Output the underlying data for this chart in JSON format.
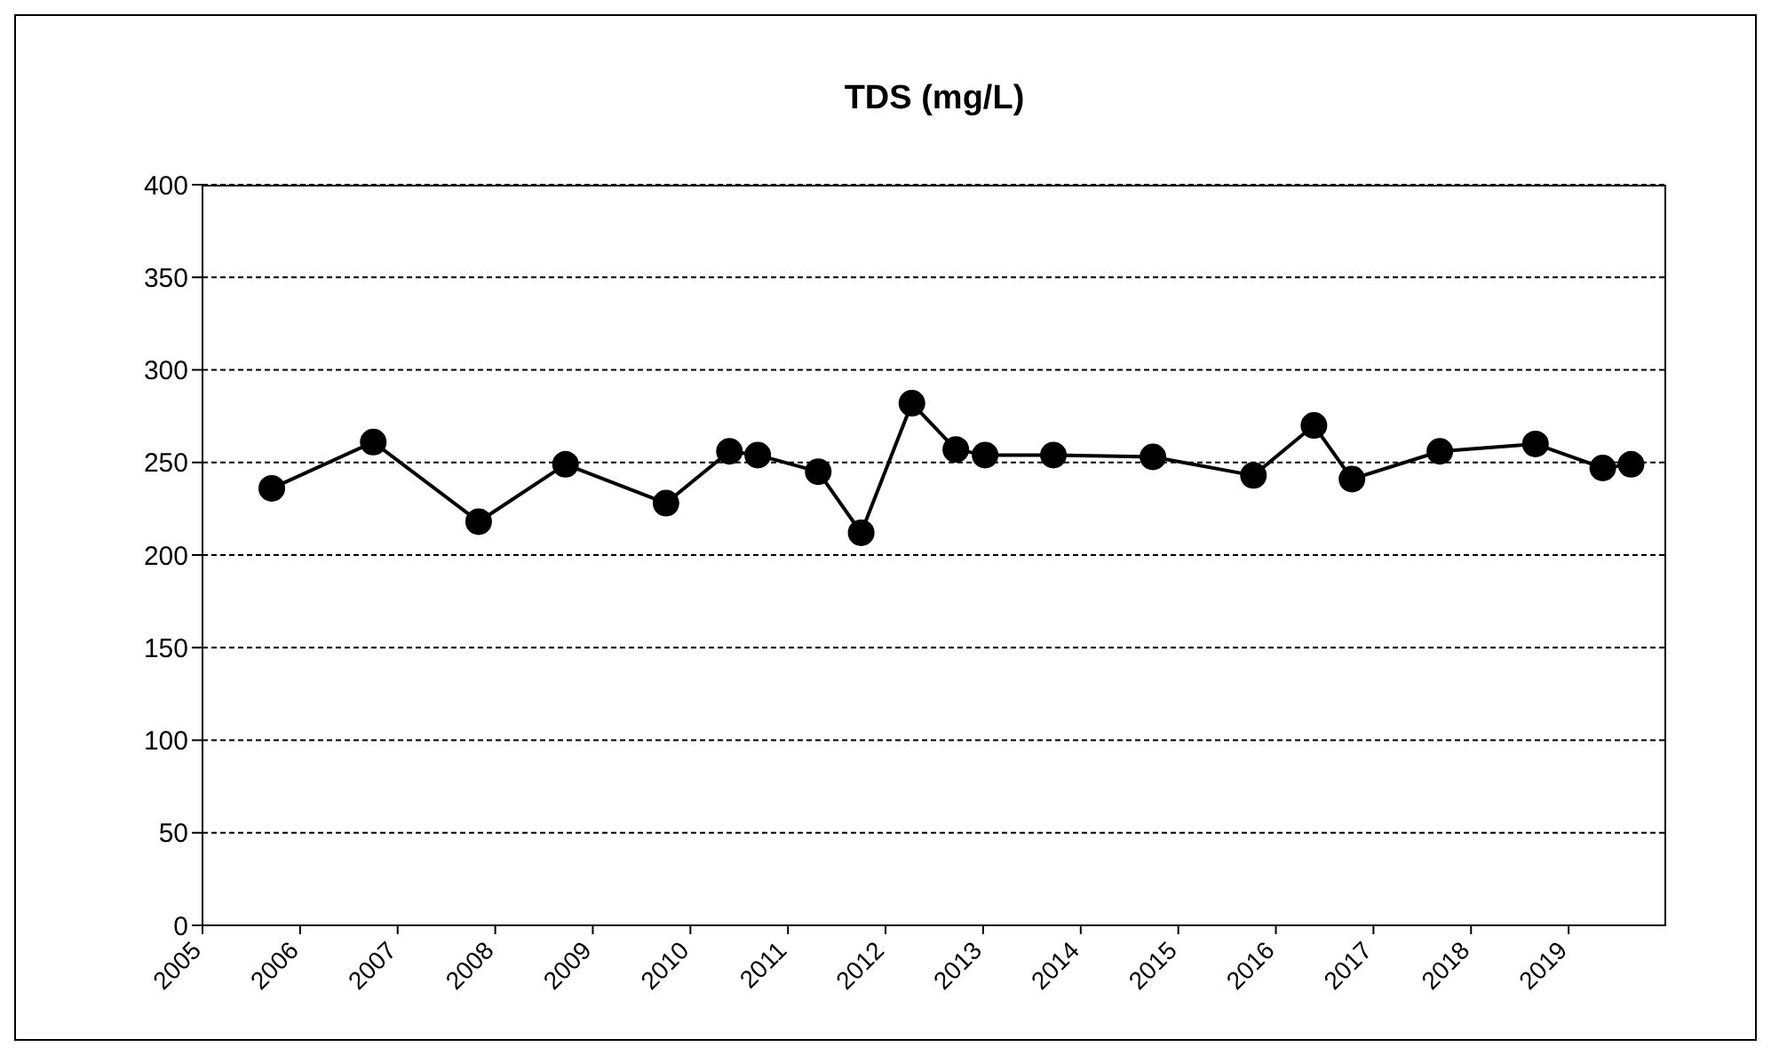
{
  "chart_data": {
    "type": "line",
    "title": "TDS (mg/L)",
    "x": [
      2005.71,
      2006.75,
      2007.83,
      2008.72,
      2009.75,
      2010.4,
      2010.69,
      2011.31,
      2011.75,
      2012.27,
      2012.72,
      2013.02,
      2013.72,
      2014.74,
      2015.77,
      2016.39,
      2016.78,
      2017.68,
      2018.66,
      2019.35,
      2019.64
    ],
    "series": [
      {
        "color": "#000000",
        "values": [
          236,
          261,
          218,
          249,
          228,
          256,
          254,
          245,
          212,
          282,
          257,
          254,
          254,
          253,
          243,
          270,
          241,
          256,
          260,
          247,
          249
        ]
      }
    ],
    "xlim": [
      2005,
      2020
    ],
    "xticks": [
      2005,
      2006,
      2007,
      2008,
      2009,
      2010,
      2011,
      2012,
      2013,
      2014,
      2015,
      2016,
      2017,
      2018,
      2019
    ],
    "ylim": [
      0,
      400
    ],
    "yticks": [
      0,
      50,
      100,
      150,
      200,
      250,
      300,
      350,
      400
    ],
    "grid": "y",
    "marker": "circle",
    "line_style": "solid"
  }
}
